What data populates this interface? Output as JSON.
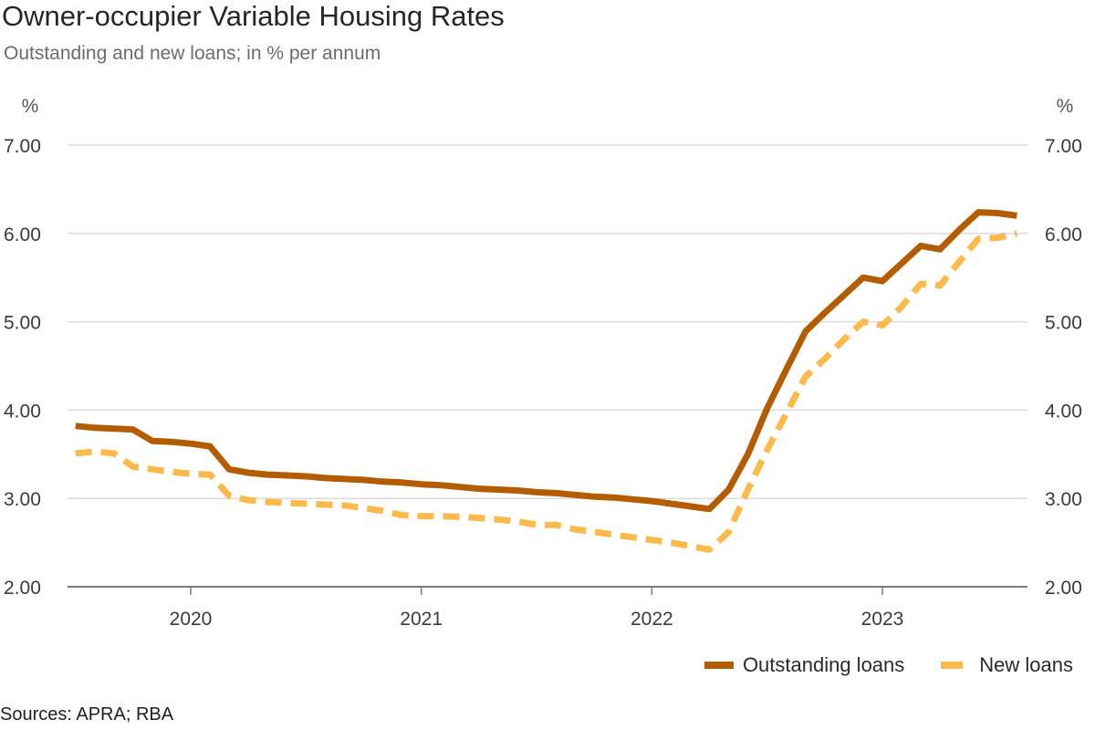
{
  "title": "Owner-occupier Variable Housing Rates",
  "subtitle": "Outstanding and new loans; in % per annum",
  "source": "Sources: APRA; RBA",
  "chart_data": {
    "type": "line",
    "title": "Owner-occupier Variable Housing Rates",
    "subtitle": "Outstanding and new loans; in % per annum",
    "xlabel": "",
    "ylabel": "%",
    "ylabel_right": "%",
    "ylim": [
      2.0,
      7.0
    ],
    "yticks": [
      "2.00",
      "3.00",
      "4.00",
      "5.00",
      "6.00",
      "7.00"
    ],
    "ytick_values": [
      2,
      3,
      4,
      5,
      6,
      7
    ],
    "xlim": [
      "2019-07",
      "2023-08"
    ],
    "xticks": [
      "2020",
      "2021",
      "2022",
      "2023"
    ],
    "grid": true,
    "legend_position": "bottom-right",
    "x": [
      "2019-07",
      "2019-08",
      "2019-09",
      "2019-10",
      "2019-11",
      "2019-12",
      "2020-01",
      "2020-02",
      "2020-03",
      "2020-04",
      "2020-05",
      "2020-06",
      "2020-07",
      "2020-08",
      "2020-09",
      "2020-10",
      "2020-11",
      "2020-12",
      "2021-01",
      "2021-02",
      "2021-03",
      "2021-04",
      "2021-05",
      "2021-06",
      "2021-07",
      "2021-08",
      "2021-09",
      "2021-10",
      "2021-11",
      "2021-12",
      "2022-01",
      "2022-02",
      "2022-03",
      "2022-04",
      "2022-05",
      "2022-06",
      "2022-07",
      "2022-08",
      "2022-09",
      "2022-10",
      "2022-11",
      "2022-12",
      "2023-01",
      "2023-02",
      "2023-03",
      "2023-04",
      "2023-05",
      "2023-06",
      "2023-07",
      "2023-08"
    ],
    "series": [
      {
        "name": "Outstanding loans",
        "color": "#B35C00",
        "style": "solid",
        "values": [
          3.82,
          3.8,
          3.79,
          3.78,
          3.65,
          3.64,
          3.62,
          3.59,
          3.33,
          3.29,
          3.27,
          3.26,
          3.25,
          3.23,
          3.22,
          3.21,
          3.19,
          3.18,
          3.16,
          3.15,
          3.13,
          3.11,
          3.1,
          3.09,
          3.07,
          3.06,
          3.04,
          3.02,
          3.01,
          2.99,
          2.97,
          2.94,
          2.91,
          2.88,
          3.1,
          3.5,
          4.02,
          4.46,
          4.89,
          5.1,
          5.3,
          5.5,
          5.46,
          5.66,
          5.86,
          5.82,
          6.04,
          6.24,
          6.23,
          6.2
        ]
      },
      {
        "name": "New loans",
        "color": "#FDB94A",
        "style": "dashed",
        "values": [
          3.51,
          3.53,
          3.51,
          3.36,
          3.33,
          3.3,
          3.28,
          3.27,
          3.03,
          2.98,
          2.96,
          2.95,
          2.94,
          2.93,
          2.92,
          2.89,
          2.86,
          2.81,
          2.8,
          2.8,
          2.79,
          2.78,
          2.76,
          2.74,
          2.7,
          2.7,
          2.65,
          2.62,
          2.59,
          2.56,
          2.53,
          2.5,
          2.46,
          2.42,
          2.62,
          3.1,
          3.55,
          3.96,
          4.38,
          4.58,
          4.8,
          5.0,
          4.96,
          5.17,
          5.43,
          5.41,
          5.68,
          5.94,
          5.95,
          6.0
        ]
      }
    ]
  }
}
